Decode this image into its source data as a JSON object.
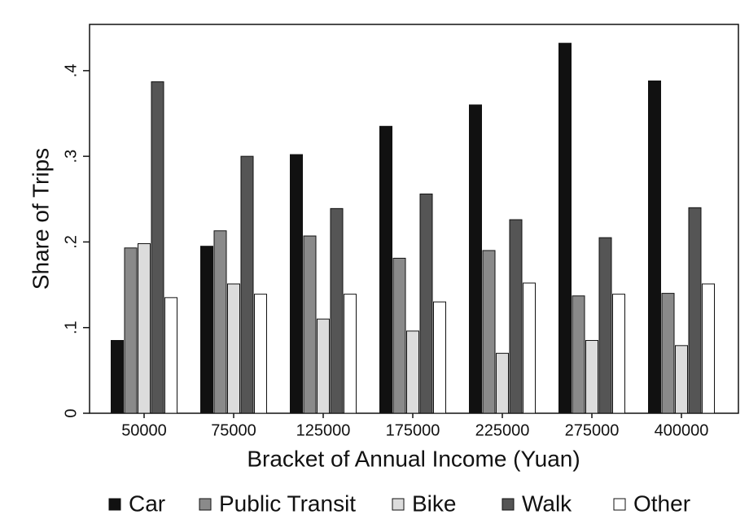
{
  "chart_data": {
    "type": "bar",
    "x_label": "Bracket of Annual Income (Yuan)",
    "y_label": "Share of Trips",
    "categories": [
      "50000",
      "75000",
      "125000",
      "175000",
      "225000",
      "275000",
      "400000"
    ],
    "series": [
      {
        "name": "Car",
        "color": "#111111",
        "values": [
          0.085,
          0.195,
          0.302,
          0.335,
          0.36,
          0.432,
          0.388
        ]
      },
      {
        "name": "Public Transit",
        "color": "#8a8a8a",
        "values": [
          0.193,
          0.213,
          0.207,
          0.181,
          0.19,
          0.137,
          0.14
        ]
      },
      {
        "name": "Bike",
        "color": "#dcdcdc",
        "values": [
          0.198,
          0.151,
          0.11,
          0.096,
          0.07,
          0.085,
          0.079
        ]
      },
      {
        "name": "Walk",
        "color": "#555555",
        "values": [
          0.387,
          0.3,
          0.239,
          0.256,
          0.226,
          0.205,
          0.24
        ]
      },
      {
        "name": "Other",
        "color": "#ffffff",
        "values": [
          0.135,
          0.139,
          0.139,
          0.13,
          0.152,
          0.139,
          0.151
        ]
      }
    ],
    "ylim": [
      0,
      0.454
    ],
    "yticks": [
      0,
      {
        "value": 0.1,
        "label": ".1"
      },
      {
        "value": 0.2,
        "label": ".2"
      },
      {
        "value": 0.3,
        "label": ".3"
      },
      {
        "value": 0.4,
        "label": ".4"
      }
    ],
    "grid": false,
    "legend": "bottom"
  }
}
